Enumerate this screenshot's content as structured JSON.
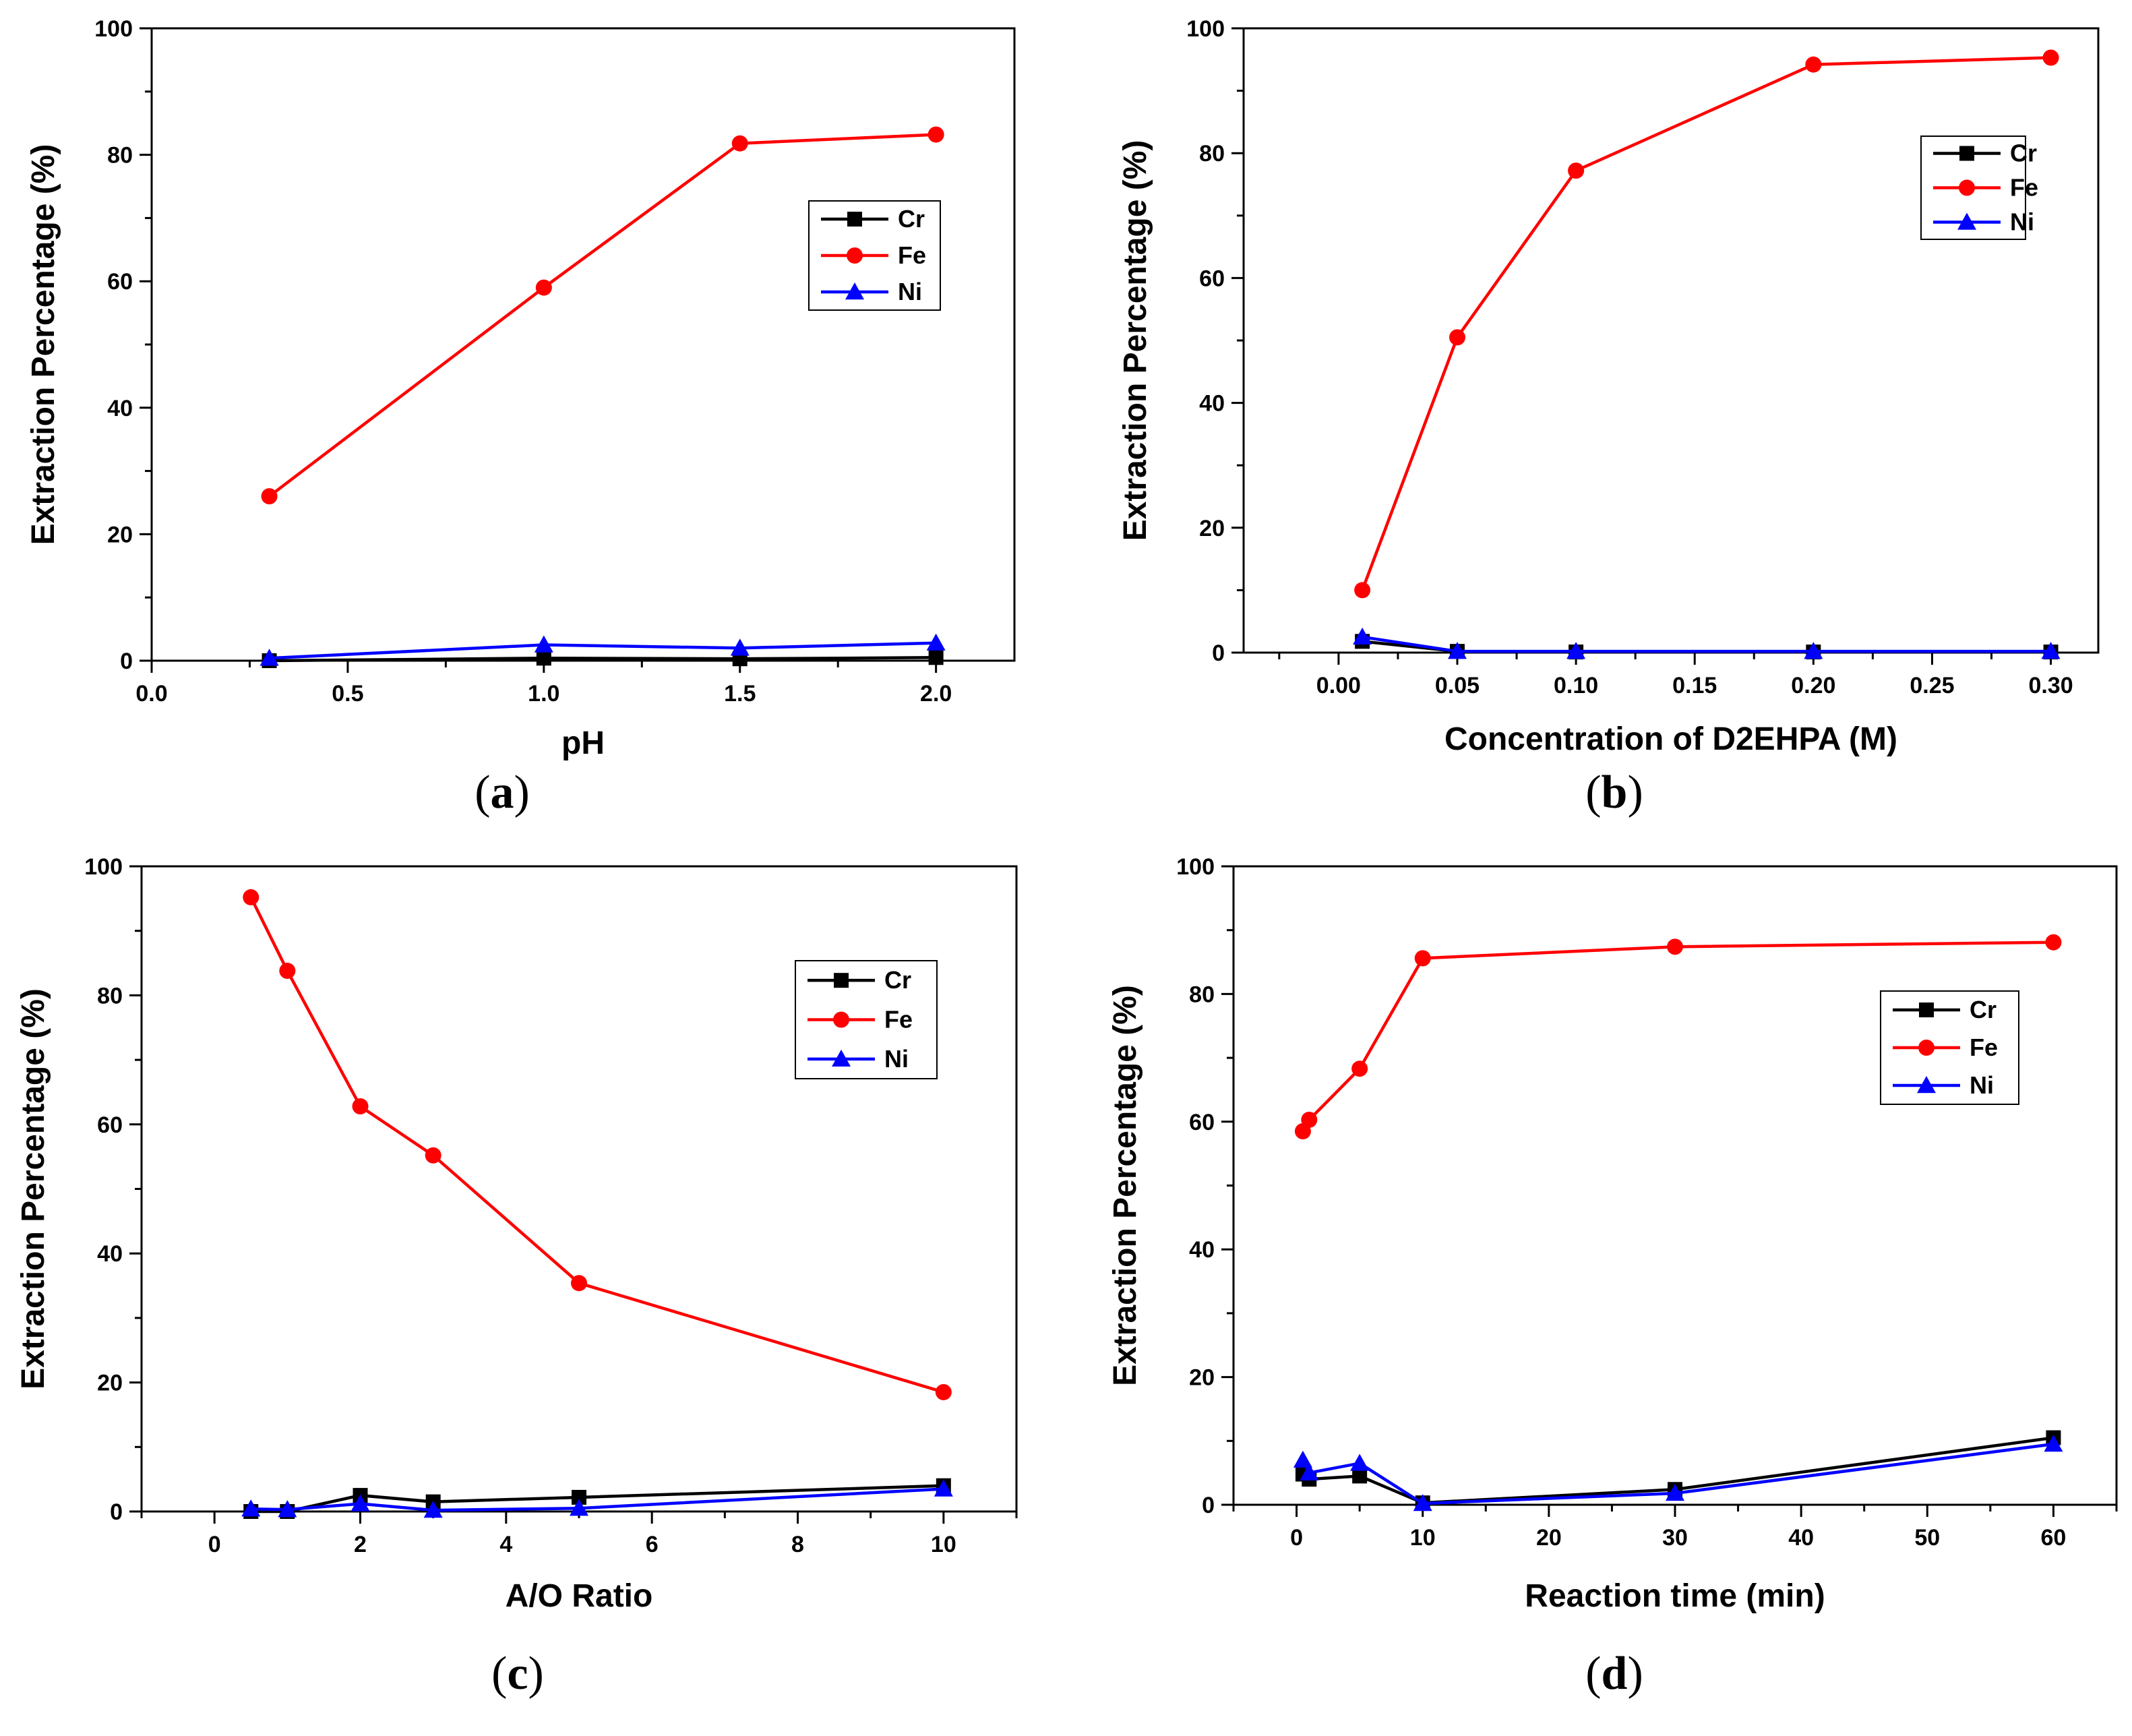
{
  "colors": {
    "Cr": "#000000",
    "Fe": "#ff0000",
    "Ni": "#0000ff",
    "axis": "#000000",
    "text": "#000000"
  },
  "chart_data": [
    {
      "type": "line",
      "panel_label": "a",
      "xlabel": "pH",
      "ylabel": "Extraction Percentage (%)",
      "xlim": [
        0.0,
        2.2
      ],
      "ylim": [
        0,
        100
      ],
      "xticks": [
        0.0,
        0.5,
        1.0,
        1.5,
        2.0
      ],
      "xtick_labels": [
        "0.0",
        "0.5",
        "1.0",
        "1.5",
        "2.0"
      ],
      "yticks": [
        0,
        20,
        40,
        60,
        80,
        100
      ],
      "ytick_labels": [
        "0",
        "20",
        "40",
        "60",
        "80",
        "100"
      ],
      "legend_position": "upper-right",
      "x": [
        0.3,
        1.0,
        1.5,
        2.0
      ],
      "series": [
        {
          "name": "Cr",
          "marker": "square",
          "values": [
            0,
            0.4,
            0.3,
            0.5
          ]
        },
        {
          "name": "Fe",
          "marker": "circle",
          "values": [
            26,
            59,
            81.8,
            83.2
          ]
        },
        {
          "name": "Ni",
          "marker": "triangle",
          "values": [
            0.4,
            2.5,
            2.0,
            2.8
          ]
        }
      ]
    },
    {
      "type": "line",
      "panel_label": "b",
      "xlabel": "Concentration of D2EHPA (M)",
      "ylabel": "Extraction Percentage (%)",
      "xlim": [
        -0.04,
        0.32
      ],
      "ylim": [
        0,
        100
      ],
      "xticks": [
        0.0,
        0.05,
        0.1,
        0.15,
        0.2,
        0.25,
        0.3
      ],
      "xtick_labels": [
        "0.00",
        "0.05",
        "0.10",
        "0.15",
        "0.20",
        "0.25",
        "0.30"
      ],
      "yticks": [
        0,
        20,
        40,
        60,
        80,
        100
      ],
      "ytick_labels": [
        "0",
        "20",
        "40",
        "60",
        "80",
        "100"
      ],
      "legend_position": "upper-right",
      "x": [
        0.01,
        0.05,
        0.1,
        0.2,
        0.3
      ],
      "series": [
        {
          "name": "Cr",
          "marker": "square",
          "values": [
            1.8,
            0.2,
            0.1,
            0.1,
            0.1
          ]
        },
        {
          "name": "Fe",
          "marker": "circle",
          "values": [
            10,
            50.5,
            77.2,
            94.2,
            95.3
          ]
        },
        {
          "name": "Ni",
          "marker": "triangle",
          "values": [
            2.5,
            0.2,
            0.2,
            0.2,
            0.2
          ]
        }
      ]
    },
    {
      "type": "line",
      "panel_label": "c",
      "xlabel": "A/O Ratio",
      "ylabel": "Extraction Percentage (%)",
      "xlim": [
        -1,
        11
      ],
      "ylim": [
        0,
        100
      ],
      "xticks": [
        0,
        2,
        4,
        6,
        8,
        10
      ],
      "xtick_labels": [
        "0",
        "2",
        "4",
        "6",
        "8",
        "10"
      ],
      "yticks": [
        0,
        20,
        40,
        60,
        80,
        100
      ],
      "ytick_labels": [
        "0",
        "20",
        "40",
        "60",
        "80",
        "100"
      ],
      "legend_position": "upper-right",
      "x": [
        0.5,
        1,
        2,
        3,
        5,
        10
      ],
      "series": [
        {
          "name": "Cr",
          "marker": "square",
          "values": [
            0,
            0,
            2.5,
            1.5,
            2.2,
            4
          ]
        },
        {
          "name": "Fe",
          "marker": "circle",
          "values": [
            95.2,
            83.8,
            62.8,
            55.2,
            35.4,
            18.5
          ]
        },
        {
          "name": "Ni",
          "marker": "triangle",
          "values": [
            0.4,
            0.3,
            1.2,
            0.2,
            0.5,
            3.5
          ]
        }
      ]
    },
    {
      "type": "line",
      "panel_label": "d",
      "xlabel": "Reaction time (min)",
      "ylabel": "Extraction Percentage (%)",
      "xlim": [
        -5,
        65
      ],
      "ylim": [
        0,
        100
      ],
      "xticks": [
        0,
        10,
        20,
        30,
        40,
        50,
        60
      ],
      "xtick_labels": [
        "0",
        "10",
        "20",
        "30",
        "40",
        "50",
        "60"
      ],
      "yticks": [
        0,
        20,
        40,
        60,
        80,
        100
      ],
      "ytick_labels": [
        "0",
        "20",
        "40",
        "60",
        "80",
        "100"
      ],
      "legend_position": "upper-right",
      "x": [
        0.5,
        1,
        5,
        10,
        30,
        60
      ],
      "series": [
        {
          "name": "Cr",
          "marker": "square",
          "values": [
            4.8,
            4.0,
            4.5,
            0.3,
            2.4,
            10.5
          ]
        },
        {
          "name": "Fe",
          "marker": "circle",
          "values": [
            58.5,
            60.3,
            68.3,
            85.6,
            87.4,
            88.1
          ]
        },
        {
          "name": "Ni",
          "marker": "triangle",
          "values": [
            7.0,
            5.0,
            6.5,
            0.2,
            1.8,
            9.5
          ]
        }
      ]
    }
  ]
}
